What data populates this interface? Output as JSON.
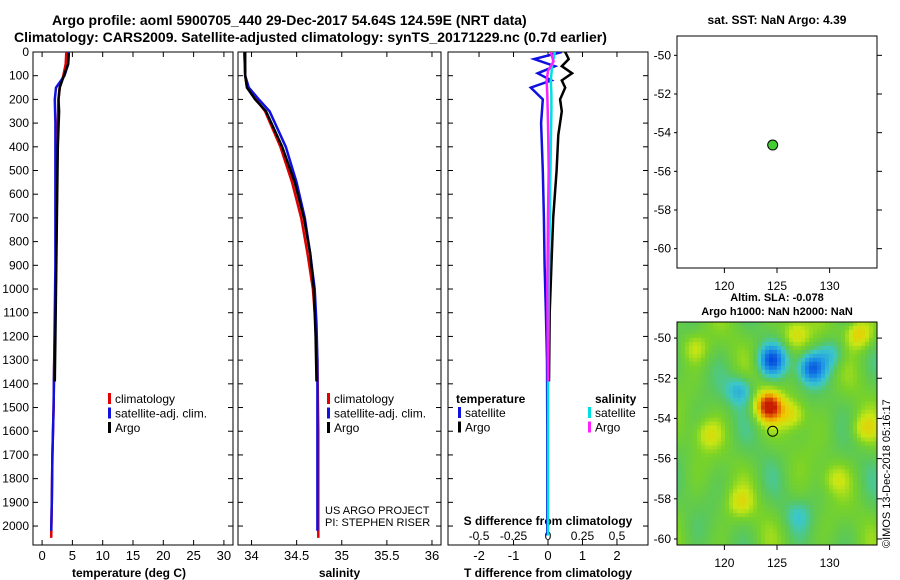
{
  "header": {
    "title_line1": "Argo profile: aoml 5900705_440 29-Dec-2017 54.64S 124.59E (NRT data)",
    "title_line2": "Climatology: CARS2009. Satellite-adjusted climatology: synTS_20171229.nc (0.7d earlier)"
  },
  "credits": {
    "project_line1": "US ARGO PROJECT",
    "project_line2": "PI: STEPHEN RISER",
    "imos": "©IMOS 13-Dec-2018 05:16:17"
  },
  "colors": {
    "climatology": "#e00000",
    "satellite": "#1010e0",
    "argo": "#000000",
    "sal_satellite": "#00e0e0",
    "sal_argo": "#ff20ff",
    "marker": "#44cc33"
  },
  "chart_data": [
    {
      "id": "temperature",
      "type": "line",
      "xlabel": "temperature (deg C)",
      "ylabel": "",
      "xlim": [
        -1.5,
        31.5
      ],
      "ylim": [
        2080,
        0
      ],
      "xticks": [
        0,
        5,
        10,
        15,
        20,
        25,
        30
      ],
      "xtick_labels": [
        "0",
        "5",
        "10",
        "15",
        "20",
        "25",
        "30"
      ],
      "yticks": [
        0,
        100,
        200,
        300,
        400,
        500,
        600,
        700,
        800,
        900,
        1000,
        1100,
        1200,
        1300,
        1400,
        1500,
        1600,
        1700,
        1800,
        1900,
        2000
      ],
      "ytick_labels": [
        "0",
        "100",
        "200",
        "300",
        "400",
        "500",
        "600",
        "700",
        "800",
        "900",
        "1000",
        "1100",
        "1200",
        "1300",
        "1400",
        "1500",
        "1600",
        "1700",
        "1800",
        "1900",
        "2000"
      ],
      "legend": [
        "climatology",
        "satellite-adj. clim.",
        "Argo"
      ],
      "series": [
        {
          "name": "climatology",
          "color": "#e00000",
          "x": [
            4.0,
            3.9,
            3.5,
            2.9,
            2.7,
            2.6,
            2.5,
            2.4,
            2.3,
            2.2,
            2.0,
            1.9,
            1.7,
            1.6,
            1.5
          ],
          "y": [
            0,
            50,
            100,
            150,
            200,
            300,
            500,
            700,
            900,
            1100,
            1300,
            1500,
            1700,
            1900,
            2050
          ]
        },
        {
          "name": "satellite-adj. clim.",
          "color": "#1010e0",
          "x": [
            4.4,
            4.3,
            3.7,
            2.3,
            2.1,
            2.2,
            2.2,
            2.2,
            2.2,
            2.1,
            2.0,
            1.9,
            1.7,
            1.6,
            1.5
          ],
          "y": [
            0,
            50,
            100,
            150,
            200,
            300,
            500,
            700,
            900,
            1100,
            1300,
            1500,
            1700,
            1900,
            2020
          ]
        },
        {
          "name": "Argo",
          "color": "#000000",
          "x": [
            4.39,
            4.3,
            3.6,
            2.9,
            2.7,
            2.8,
            2.6,
            2.5,
            2.4,
            2.3,
            2.2,
            2.1
          ],
          "y": [
            5,
            50,
            100,
            150,
            200,
            250,
            400,
            600,
            800,
            1000,
            1200,
            1390
          ]
        }
      ]
    },
    {
      "id": "salinity",
      "type": "line",
      "xlabel": "salinity",
      "ylabel": "",
      "xlim": [
        33.85,
        36.1
      ],
      "ylim": [
        2080,
        0
      ],
      "xticks": [
        34,
        34.5,
        35,
        35.5,
        36
      ],
      "xtick_labels": [
        "34",
        "34.5",
        "35",
        "35.5",
        "36"
      ],
      "legend": [
        "climatology",
        "satellite-adj. clim.",
        "Argo"
      ],
      "series": [
        {
          "name": "climatology",
          "color": "#e00000",
          "x": [
            33.92,
            33.93,
            33.95,
            34.05,
            34.15,
            34.32,
            34.45,
            34.55,
            34.62,
            34.68,
            34.71,
            34.73,
            34.74,
            34.74
          ],
          "y": [
            0,
            100,
            150,
            200,
            250,
            400,
            550,
            700,
            850,
            1000,
            1150,
            1300,
            1600,
            2050
          ]
        },
        {
          "name": "satellite-adj. clim.",
          "color": "#1010e0",
          "x": [
            33.92,
            33.93,
            33.97,
            34.08,
            34.2,
            34.38,
            34.5,
            34.59,
            34.65,
            34.7,
            34.72,
            34.73,
            34.73,
            34.73
          ],
          "y": [
            0,
            100,
            150,
            200,
            250,
            400,
            550,
            700,
            850,
            1000,
            1150,
            1300,
            1600,
            2020
          ]
        },
        {
          "name": "Argo",
          "color": "#000000",
          "x": [
            33.93,
            33.93,
            33.95,
            34.04,
            34.16,
            34.34,
            34.48,
            34.58,
            34.65,
            34.69,
            34.71,
            34.72
          ],
          "y": [
            0,
            100,
            150,
            200,
            250,
            400,
            550,
            700,
            850,
            1000,
            1200,
            1390
          ]
        }
      ]
    },
    {
      "id": "difference",
      "type": "line",
      "xlabel": "T difference from climatology",
      "xlabel_top": "S difference from climatology",
      "xlim": [
        -2.9,
        2.9
      ],
      "ylim": [
        2080,
        0
      ],
      "xticks": [
        -2,
        -1,
        0,
        1,
        2
      ],
      "xtick_labels": [
        "-2",
        "-1",
        "0",
        "1",
        "2"
      ],
      "s_ticks": [
        -0.5,
        -0.25,
        0,
        0.25,
        0.5
      ],
      "s_tick_labels": [
        "-0.5",
        "-0.25",
        "0",
        "0.25",
        "0.5"
      ],
      "legend_temperature_title": "temperature",
      "legend_salinity_title": "salinity",
      "legend_temperature": [
        "satellite",
        "Argo"
      ],
      "legend_salinity": [
        "satellite",
        "Argo"
      ],
      "series": [
        {
          "name": "T satellite",
          "color": "#1010e0",
          "x": [
            0.4,
            -0.4,
            0.2,
            -0.3,
            0.1,
            -0.5,
            -0.15,
            -0.2,
            -0.15,
            -0.12,
            -0.1,
            -0.06,
            -0.03,
            -0.02,
            -0.02
          ],
          "y": [
            0,
            30,
            60,
            90,
            120,
            150,
            200,
            300,
            500,
            700,
            900,
            1100,
            1300,
            1600,
            2040
          ]
        },
        {
          "name": "T Argo",
          "color": "#000000",
          "x": [
            0.5,
            0.6,
            0.4,
            0.7,
            0.4,
            0.5,
            0.35,
            0.4,
            0.3,
            0.25,
            0.15,
            0.1,
            0.05,
            0.03
          ],
          "y": [
            0,
            30,
            60,
            90,
            120,
            150,
            200,
            250,
            350,
            500,
            700,
            900,
            1100,
            1390
          ]
        },
        {
          "name": "S satellite",
          "color": "#00e0e0",
          "x": [
            0.05,
            0.03,
            0.02,
            0.025,
            0.025,
            0.02,
            0.015,
            0.01,
            0.005,
            0.0,
            0.0
          ],
          "y": [
            0,
            60,
            120,
            180,
            250,
            400,
            600,
            800,
            1000,
            1400,
            2040
          ]
        },
        {
          "name": "S Argo",
          "color": "#ff20ff",
          "x": [
            0.02,
            0.04,
            0.0,
            -0.01,
            -0.005,
            0.0,
            0.005,
            0.0,
            -0.005,
            0.0
          ],
          "y": [
            0,
            40,
            80,
            120,
            180,
            300,
            500,
            700,
            1000,
            1390
          ]
        }
      ]
    },
    {
      "id": "sst_map",
      "type": "scatter",
      "title": "sat. SST: NaN Argo: 4.39",
      "xlim": [
        115.5,
        134.5
      ],
      "ylim": [
        -61,
        -49
      ],
      "xticks": [
        120,
        125,
        130
      ],
      "xtick_labels": [
        "120",
        "125",
        "130"
      ],
      "yticks": [
        -50,
        -52,
        -54,
        -56,
        -58,
        -60
      ],
      "ytick_labels": [
        "-50",
        "-52",
        "-54",
        "-56",
        "-58",
        "-60"
      ],
      "points": [
        {
          "lon": 124.59,
          "lat": -54.64
        }
      ]
    },
    {
      "id": "sla_map",
      "type": "heatmap",
      "title_line1": "Altim. SLA: -0.078",
      "title_line2": "Argo h1000: NaN h2000: NaN",
      "xlim": [
        115.5,
        134.5
      ],
      "ylim": [
        -60.3,
        -49.2
      ],
      "xticks": [
        120,
        125,
        130
      ],
      "xtick_labels": [
        "120",
        "125",
        "130"
      ],
      "yticks": [
        -50,
        -52,
        -54,
        -56,
        -58,
        -60
      ],
      "ytick_labels": [
        "-50",
        "-52",
        "-54",
        "-56",
        "-58",
        "-60"
      ],
      "points": [
        {
          "lon": 124.59,
          "lat": -54.64
        }
      ],
      "features": [
        {
          "lon": 124.2,
          "lat": -53.4,
          "amp": 1.0
        },
        {
          "lon": 124.5,
          "lat": -51.1,
          "amp": -0.8
        },
        {
          "lon": 128.3,
          "lat": -51.5,
          "amp": -0.75
        },
        {
          "lon": 121.5,
          "lat": -52.6,
          "amp": -0.45
        },
        {
          "lon": 126.5,
          "lat": -53.8,
          "amp": 0.4
        },
        {
          "lon": 130.2,
          "lat": -50.8,
          "amp": -0.35
        },
        {
          "lon": 132.8,
          "lat": -49.8,
          "amp": 0.55
        },
        {
          "lon": 133.2,
          "lat": -54.5,
          "amp": 0.35
        },
        {
          "lon": 118.5,
          "lat": -54.8,
          "amp": 0.3
        },
        {
          "lon": 126.8,
          "lat": -49.8,
          "amp": 0.4
        },
        {
          "lon": 121.5,
          "lat": -58.2,
          "amp": 0.3
        },
        {
          "lon": 127.0,
          "lat": -58.8,
          "amp": -0.2
        },
        {
          "lon": 130.5,
          "lat": -57.0,
          "amp": 0.25
        },
        {
          "lon": 117.2,
          "lat": -50.5,
          "amp": 0.3
        }
      ]
    }
  ]
}
